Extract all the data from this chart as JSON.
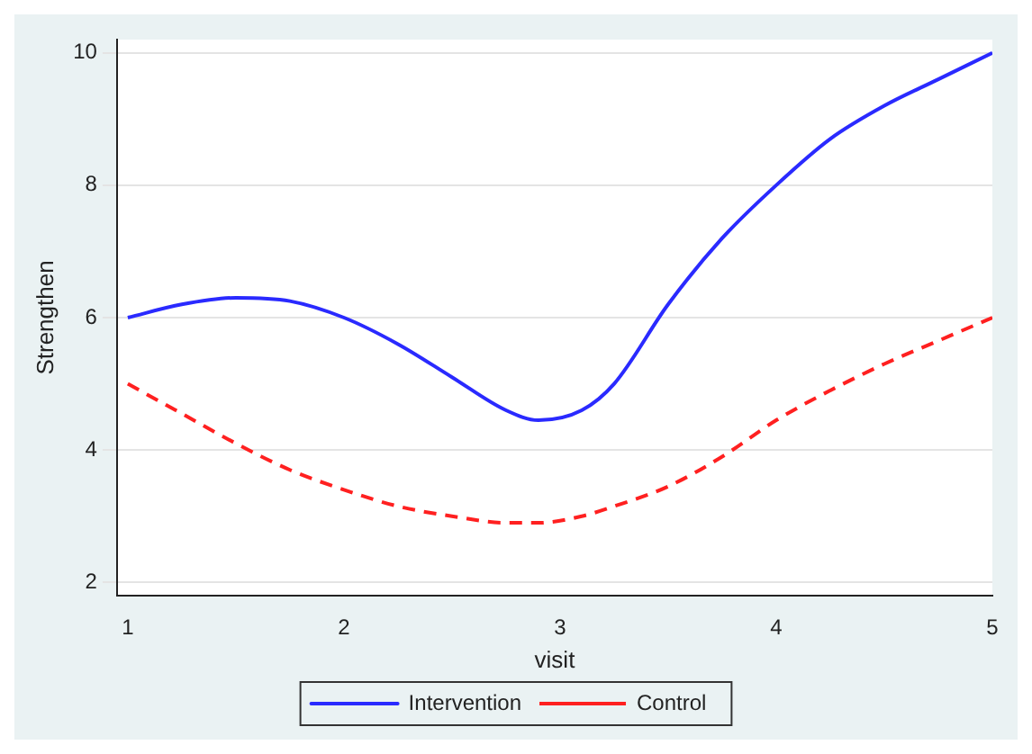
{
  "chart_data": {
    "type": "line",
    "xlabel": "visit",
    "ylabel": "Strengthen",
    "x": [
      1,
      1.25,
      1.5,
      1.75,
      2,
      2.25,
      2.5,
      2.75,
      2.9,
      3.1,
      3.25,
      3.5,
      3.75,
      4,
      4.25,
      4.5,
      4.75,
      5
    ],
    "series": [
      {
        "name": "Intervention",
        "color": "#2a2aff",
        "line_style": "solid",
        "values": [
          6.0,
          6.2,
          6.3,
          6.25,
          6.0,
          5.6,
          5.1,
          4.6,
          4.45,
          4.6,
          5.0,
          6.2,
          7.2,
          8.0,
          8.7,
          9.2,
          9.6,
          10.0
        ]
      },
      {
        "name": "Control",
        "color": "#ff2020",
        "line_style": "dashed",
        "values": [
          5.0,
          4.55,
          4.1,
          3.7,
          3.4,
          3.15,
          3.0,
          2.9,
          2.9,
          3.0,
          3.15,
          3.45,
          3.9,
          4.45,
          4.9,
          5.3,
          5.65,
          6.0
        ]
      }
    ],
    "xlim": [
      0.95,
      5.0
    ],
    "ylim": [
      1.8,
      10.2
    ],
    "xticks": [
      1,
      2,
      3,
      4,
      5
    ],
    "yticks": [
      2,
      4,
      6,
      8,
      10
    ],
    "grid": "y",
    "legend": "bottom",
    "marker": "none"
  }
}
